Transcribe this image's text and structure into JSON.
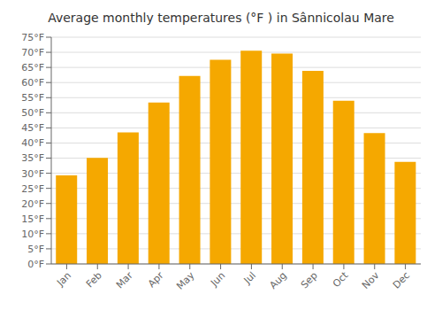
{
  "chart_data": {
    "type": "bar",
    "title": "Average monthly temperatures (°F ) in Sânnicolau Mare",
    "categories": [
      "Jan",
      "Feb",
      "Mar",
      "Apr",
      "May",
      "Jun",
      "Jul",
      "Aug",
      "Sep",
      "Oct",
      "Nov",
      "Dec"
    ],
    "values": [
      29.3,
      35.1,
      43.5,
      53.4,
      62.2,
      67.5,
      70.5,
      69.6,
      63.9,
      54.0,
      43.3,
      33.8
    ],
    "color": "#F5A800",
    "ylim": [
      0,
      75
    ],
    "yticks": [
      {
        "value": 0,
        "label": "0°F"
      },
      {
        "value": 5,
        "label": "5°F"
      },
      {
        "value": 10,
        "label": "10°F"
      },
      {
        "value": 15,
        "label": "15°F"
      },
      {
        "value": 20,
        "label": "20°F"
      },
      {
        "value": 25,
        "label": "25°F"
      },
      {
        "value": 30,
        "label": "30°F"
      },
      {
        "value": 35,
        "label": "35°F"
      },
      {
        "value": 40,
        "label": "40°F"
      },
      {
        "value": 45,
        "label": "45°F"
      },
      {
        "value": 50,
        "label": "50°F"
      },
      {
        "value": 55,
        "label": "55°F"
      },
      {
        "value": 60,
        "label": "60°F"
      },
      {
        "value": 65,
        "label": "65°F"
      },
      {
        "value": 70,
        "label": "70°F"
      },
      {
        "value": 75,
        "label": "75°F"
      }
    ],
    "grid": true
  }
}
